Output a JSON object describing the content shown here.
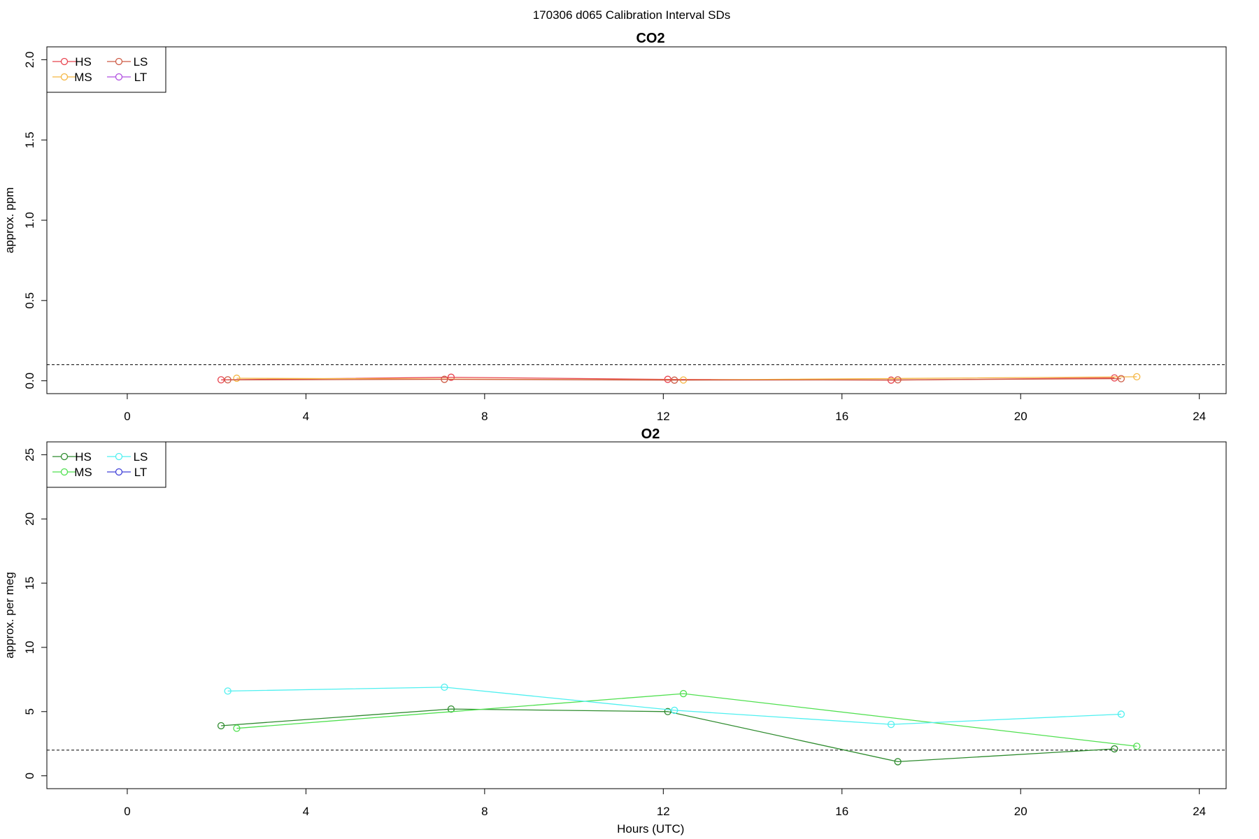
{
  "suptitle": "170306   d065   Calibration Interval SDs",
  "chart_data": [
    {
      "type": "line",
      "title": "CO2",
      "xlabel": "",
      "ylabel": "approx. ppm",
      "xlim": [
        -1.8,
        24.6
      ],
      "ylim": [
        -0.08,
        2.08
      ],
      "xticks": [
        0,
        4,
        8,
        12,
        16,
        20,
        24
      ],
      "yticks": [
        0.0,
        0.5,
        1.0,
        1.5,
        2.0
      ],
      "ytick_labels": [
        "0.0",
        "0.5",
        "1.0",
        "1.5",
        "2.0"
      ],
      "threshold": 0.1,
      "legend_position": "top-left",
      "legend_cols": 2,
      "series": [
        {
          "name": "HS",
          "color": "#e8434e",
          "x": [
            2.1,
            7.25,
            12.1,
            17.1,
            22.1
          ],
          "y": [
            0.006,
            0.022,
            0.009,
            0.004,
            0.018
          ]
        },
        {
          "name": "MS",
          "color": "#f5b642",
          "x": [
            2.45,
            12.45,
            22.6
          ],
          "y": [
            0.016,
            0.005,
            0.025
          ]
        },
        {
          "name": "LS",
          "color": "#cd5b45",
          "x": [
            2.25,
            7.1,
            12.25,
            17.25,
            22.25
          ],
          "y": [
            0.006,
            0.009,
            0.004,
            0.006,
            0.013
          ]
        },
        {
          "name": "LT",
          "color": "#b04fe0",
          "x": [],
          "y": []
        }
      ]
    },
    {
      "type": "line",
      "title": "O2",
      "xlabel": "Hours (UTC)",
      "ylabel": "approx. per meg",
      "xlim": [
        -1.8,
        24.6
      ],
      "ylim": [
        -1,
        26
      ],
      "xticks": [
        0,
        4,
        8,
        12,
        16,
        20,
        24
      ],
      "yticks": [
        0,
        5,
        10,
        15,
        20,
        25
      ],
      "ytick_labels": [
        "0",
        "5",
        "10",
        "15",
        "20",
        "25"
      ],
      "threshold": 2,
      "legend_position": "top-left",
      "legend_cols": 2,
      "series": [
        {
          "name": "HS",
          "color": "#2e8b2e",
          "x": [
            2.1,
            7.25,
            12.1,
            17.25,
            22.1
          ],
          "y": [
            3.9,
            5.2,
            5.0,
            1.1,
            2.1
          ]
        },
        {
          "name": "MS",
          "color": "#4fe04f",
          "x": [
            2.45,
            12.45,
            22.6
          ],
          "y": [
            3.7,
            6.4,
            2.3
          ]
        },
        {
          "name": "LS",
          "color": "#4ff0f0",
          "x": [
            2.25,
            7.1,
            12.25,
            17.1,
            22.25
          ],
          "y": [
            6.6,
            6.9,
            5.1,
            4.0,
            4.8
          ]
        },
        {
          "name": "LT",
          "color": "#4040d8",
          "x": [],
          "y": []
        }
      ]
    }
  ]
}
